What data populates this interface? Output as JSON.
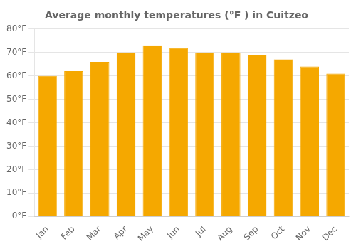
{
  "chart_data": {
    "type": "bar",
    "title": "Average monthly temperatures (°F ) in Cuitzeo",
    "categories": [
      "Jan",
      "Feb",
      "Mar",
      "Apr",
      "May",
      "Jun",
      "Jul",
      "Aug",
      "Sep",
      "Oct",
      "Nov",
      "Dec"
    ],
    "values": [
      60,
      62,
      66,
      70,
      73,
      72,
      70,
      70,
      69,
      67,
      64,
      61
    ],
    "color": "#F5A800",
    "ylim": [
      0,
      80
    ],
    "yticks": [
      {
        "value": 0,
        "label": "0°F"
      },
      {
        "value": 10,
        "label": "10°F"
      },
      {
        "value": 20,
        "label": "20°F"
      },
      {
        "value": 30,
        "label": "30°F"
      },
      {
        "value": 40,
        "label": "40°F"
      },
      {
        "value": 50,
        "label": "50°F"
      },
      {
        "value": 60,
        "label": "60°F"
      },
      {
        "value": 70,
        "label": "70°F"
      },
      {
        "value": 80,
        "label": "80°F"
      }
    ],
    "grid": true
  }
}
